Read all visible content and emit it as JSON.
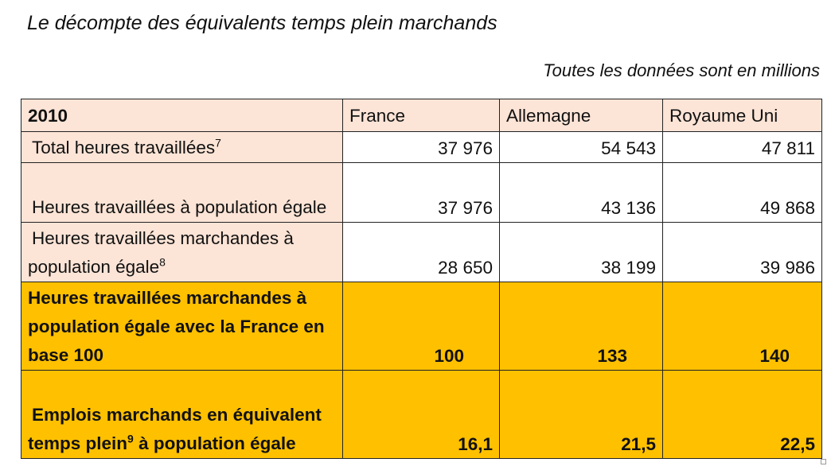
{
  "title": "Le décompte des équivalents temps plein marchands",
  "subtitle": "Toutes les données sont en millions",
  "table": {
    "year": "2010",
    "columns": [
      "France",
      "Allemagne",
      "Royaume Uni"
    ],
    "rows": [
      {
        "label": "Total heures travaillées",
        "note": "7",
        "values": [
          "37 976",
          "54 543",
          "47 811"
        ]
      },
      {
        "label": "Heures travaillées à population égale",
        "note": "",
        "values": [
          "37 976",
          "43 136",
          "49 868"
        ]
      },
      {
        "label": "Heures travaillées marchandes à population égale",
        "note": "8",
        "values": [
          "28 650",
          "38 199",
          "39 986"
        ]
      },
      {
        "label": "Heures travaillées marchandes à population égale avec la France en base 100",
        "note": "",
        "values": [
          "100",
          "133",
          "140"
        ]
      },
      {
        "label_before": "Emplois marchands en équivalent temps plein",
        "note": "9",
        "label_after": " à population égale",
        "values": [
          "16,1",
          "21,5",
          "22,5"
        ]
      }
    ]
  }
}
